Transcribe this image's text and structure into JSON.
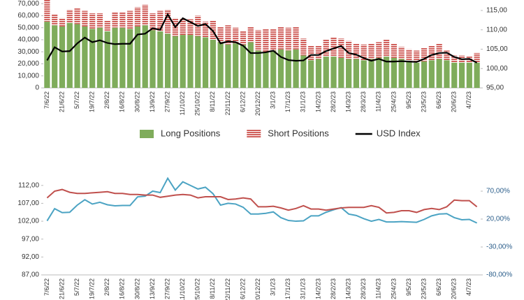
{
  "chart_data": [
    {
      "type": "bar",
      "stacked": true,
      "categories": [
        "7/6/22",
        null,
        "21/6/22",
        null,
        "5/7/22",
        null,
        "19/7/22",
        null,
        "2/8/22",
        null,
        "16/8/22",
        null,
        "30/8/22",
        null,
        "13/9/22",
        null,
        "27/9/22",
        null,
        "11/10/22",
        null,
        "25/10/22",
        null,
        "8/11/22",
        null,
        "22/11/22",
        null,
        "6/12/22",
        null,
        "20/12/22",
        null,
        "3/1/23",
        null,
        "17/1/23",
        null,
        "31/1/23",
        null,
        "14/2/23",
        null,
        "28/2/23",
        null,
        "14/3/23",
        null,
        "28/3/23",
        null,
        "11/4/23",
        null,
        "25/4/23",
        null,
        "9/5/23",
        null,
        "23/5/23",
        null,
        "6/6/23",
        null,
        "20/6/23",
        null,
        "4/7/23",
        null
      ],
      "series": [
        {
          "name": "Long Positions",
          "color": "#7fac5b",
          "values": [
            55000,
            52000,
            51000,
            54000,
            53000,
            51000,
            49000,
            50000,
            47000,
            50000,
            50000,
            49000,
            51000,
            52000,
            48000,
            47000,
            45000,
            43000,
            44000,
            44000,
            43000,
            42000,
            40000,
            38000,
            36000,
            37000,
            36000,
            38000,
            31000,
            30000,
            31000,
            32000,
            31000,
            32000,
            27000,
            23000,
            24000,
            26000,
            26000,
            25000,
            24000,
            24000,
            23000,
            24000,
            25000,
            26000,
            25000,
            24000,
            22000,
            21000,
            22000,
            23000,
            24000,
            23000,
            21000,
            21000,
            21000,
            21000
          ]
        },
        {
          "name": "Short Positions",
          "color": "#d0605c",
          "values": [
            18000,
            9000,
            7000,
            11000,
            13000,
            13000,
            13000,
            12000,
            9000,
            13000,
            13000,
            15000,
            16000,
            17000,
            14000,
            17000,
            20000,
            15000,
            14000,
            13000,
            17000,
            13000,
            16000,
            13000,
            16000,
            13000,
            11000,
            13000,
            17000,
            19000,
            18000,
            19000,
            19000,
            19000,
            14000,
            12000,
            11000,
            14000,
            16000,
            16000,
            15000,
            13000,
            13000,
            13000,
            13000,
            14000,
            12000,
            10000,
            10000,
            10000,
            11000,
            12000,
            13000,
            8000,
            6000,
            6000,
            5000,
            8000
          ]
        },
        {
          "name": "USD Index",
          "color": "#000000",
          "type": "line",
          "axis": "y2",
          "values": [
            102.1,
            105.5,
            104.4,
            104.5,
            106.5,
            108.0,
            106.8,
            107.3,
            106.6,
            106.3,
            106.4,
            106.4,
            108.8,
            109.0,
            110.4,
            110.0,
            114.0,
            110.7,
            113.0,
            112.0,
            111.0,
            111.5,
            109.7,
            106.5,
            107.0,
            106.8,
            105.9,
            104.0,
            104.0,
            104.2,
            104.6,
            103.0,
            102.2,
            102.0,
            102.1,
            103.5,
            103.5,
            104.5,
            105.2,
            105.8,
            104.0,
            103.6,
            102.7,
            102.0,
            102.5,
            101.8,
            101.8,
            101.9,
            101.8,
            101.7,
            102.5,
            103.5,
            104.0,
            104.1,
            103.0,
            102.4,
            102.5,
            101.5
          ]
        }
      ],
      "ylim": [
        0,
        73000
      ],
      "yticks": [
        0,
        {
          "value": 10000,
          "label": "10,000"
        },
        {
          "value": 20000,
          "label": "20,000"
        },
        {
          "value": 30000,
          "label": "30,000"
        },
        {
          "value": 40000,
          "label": "40,000"
        },
        {
          "value": 50000,
          "label": "50,000"
        },
        {
          "value": 60000,
          "label": "60,000"
        },
        {
          "value": 70000,
          "label": "70,000"
        }
      ],
      "y2lim": [
        95,
        117.7
      ],
      "y2ticks": [
        {
          "value": 95,
          "label": "95,00"
        },
        {
          "value": 100,
          "label": "100,00"
        },
        {
          "value": 105,
          "label": "105,00"
        },
        {
          "value": 110,
          "label": "110,00"
        },
        {
          "value": 115,
          "label": "115,00"
        }
      ],
      "legend": "bottom"
    },
    {
      "type": "line",
      "categories": [
        "7/6/22",
        null,
        "21/6/22",
        null,
        "5/7/22",
        null,
        "19/7/22",
        null,
        "2/8/22",
        null,
        "16/8/22",
        null,
        "30/8/22",
        null,
        "13/9/22",
        null,
        "27/9/22",
        null,
        "11/10/22",
        null,
        "25/10/22",
        null,
        "8/11/22",
        null,
        "22/11/22",
        null,
        "6/12/22",
        null,
        "20/12/22",
        null,
        "3/1/23",
        null,
        "17/1/23",
        null,
        "31/1/23",
        null,
        "14/2/23",
        null,
        "28/2/23",
        null,
        "14/3/23",
        null,
        "28/3/23",
        null,
        "11/4/23",
        null,
        "25/4/23",
        null,
        "9/5/23",
        null,
        "23/5/23",
        null,
        "6/6/23",
        null,
        "20/6/23",
        null,
        "4/7/23",
        null
      ],
      "series": [
        {
          "color": "#4ba3c3",
          "values": [
            102.1,
            105.5,
            104.4,
            104.5,
            106.5,
            108.0,
            106.8,
            107.3,
            106.6,
            106.3,
            106.4,
            106.4,
            108.8,
            109.0,
            110.4,
            110.0,
            114.0,
            110.7,
            113.0,
            112.0,
            111.0,
            111.5,
            109.7,
            106.5,
            107.0,
            106.8,
            105.9,
            104.0,
            104.0,
            104.2,
            104.6,
            103.0,
            102.2,
            102.0,
            102.1,
            103.5,
            103.5,
            104.5,
            105.2,
            105.8,
            104.0,
            103.6,
            102.7,
            102.0,
            102.5,
            101.8,
            101.8,
            101.9,
            101.8,
            101.7,
            102.5,
            103.5,
            104.0,
            104.1,
            103.0,
            102.4,
            102.5,
            101.5
          ]
        },
        {
          "color": "#c0504d",
          "axis": "y2",
          "values": [
            58,
            70,
            73,
            68,
            66,
            66,
            67,
            68,
            69,
            66,
            66,
            64,
            64,
            63,
            63,
            59,
            61,
            63,
            64,
            63,
            58,
            60,
            60,
            60,
            55,
            56,
            58,
            56,
            42,
            42,
            43,
            40,
            36,
            39,
            44,
            38,
            38,
            36,
            38,
            40,
            41,
            41,
            41,
            44,
            41,
            31,
            32,
            35,
            35,
            32,
            37,
            39,
            37,
            42,
            54,
            53,
            53,
            42
          ]
        }
      ],
      "ylim": [
        87,
        114.1
      ],
      "yticks": [
        {
          "value": 87,
          "label": "87,00"
        },
        {
          "value": 92,
          "label": "92,00"
        },
        {
          "value": 97,
          "label": "97,00"
        },
        {
          "value": 102,
          "label": "102,00"
        },
        {
          "value": 107,
          "label": "107,00"
        },
        {
          "value": 112,
          "label": "112,00"
        }
      ],
      "y2lim": [
        -80,
        93.75
      ],
      "y2ticks": [
        {
          "value": -80,
          "label": "-80,00%"
        },
        {
          "value": -30,
          "label": "-30,00%"
        },
        {
          "value": 20,
          "label": "20,00%"
        },
        {
          "value": 70,
          "label": "70,00%"
        }
      ]
    }
  ]
}
